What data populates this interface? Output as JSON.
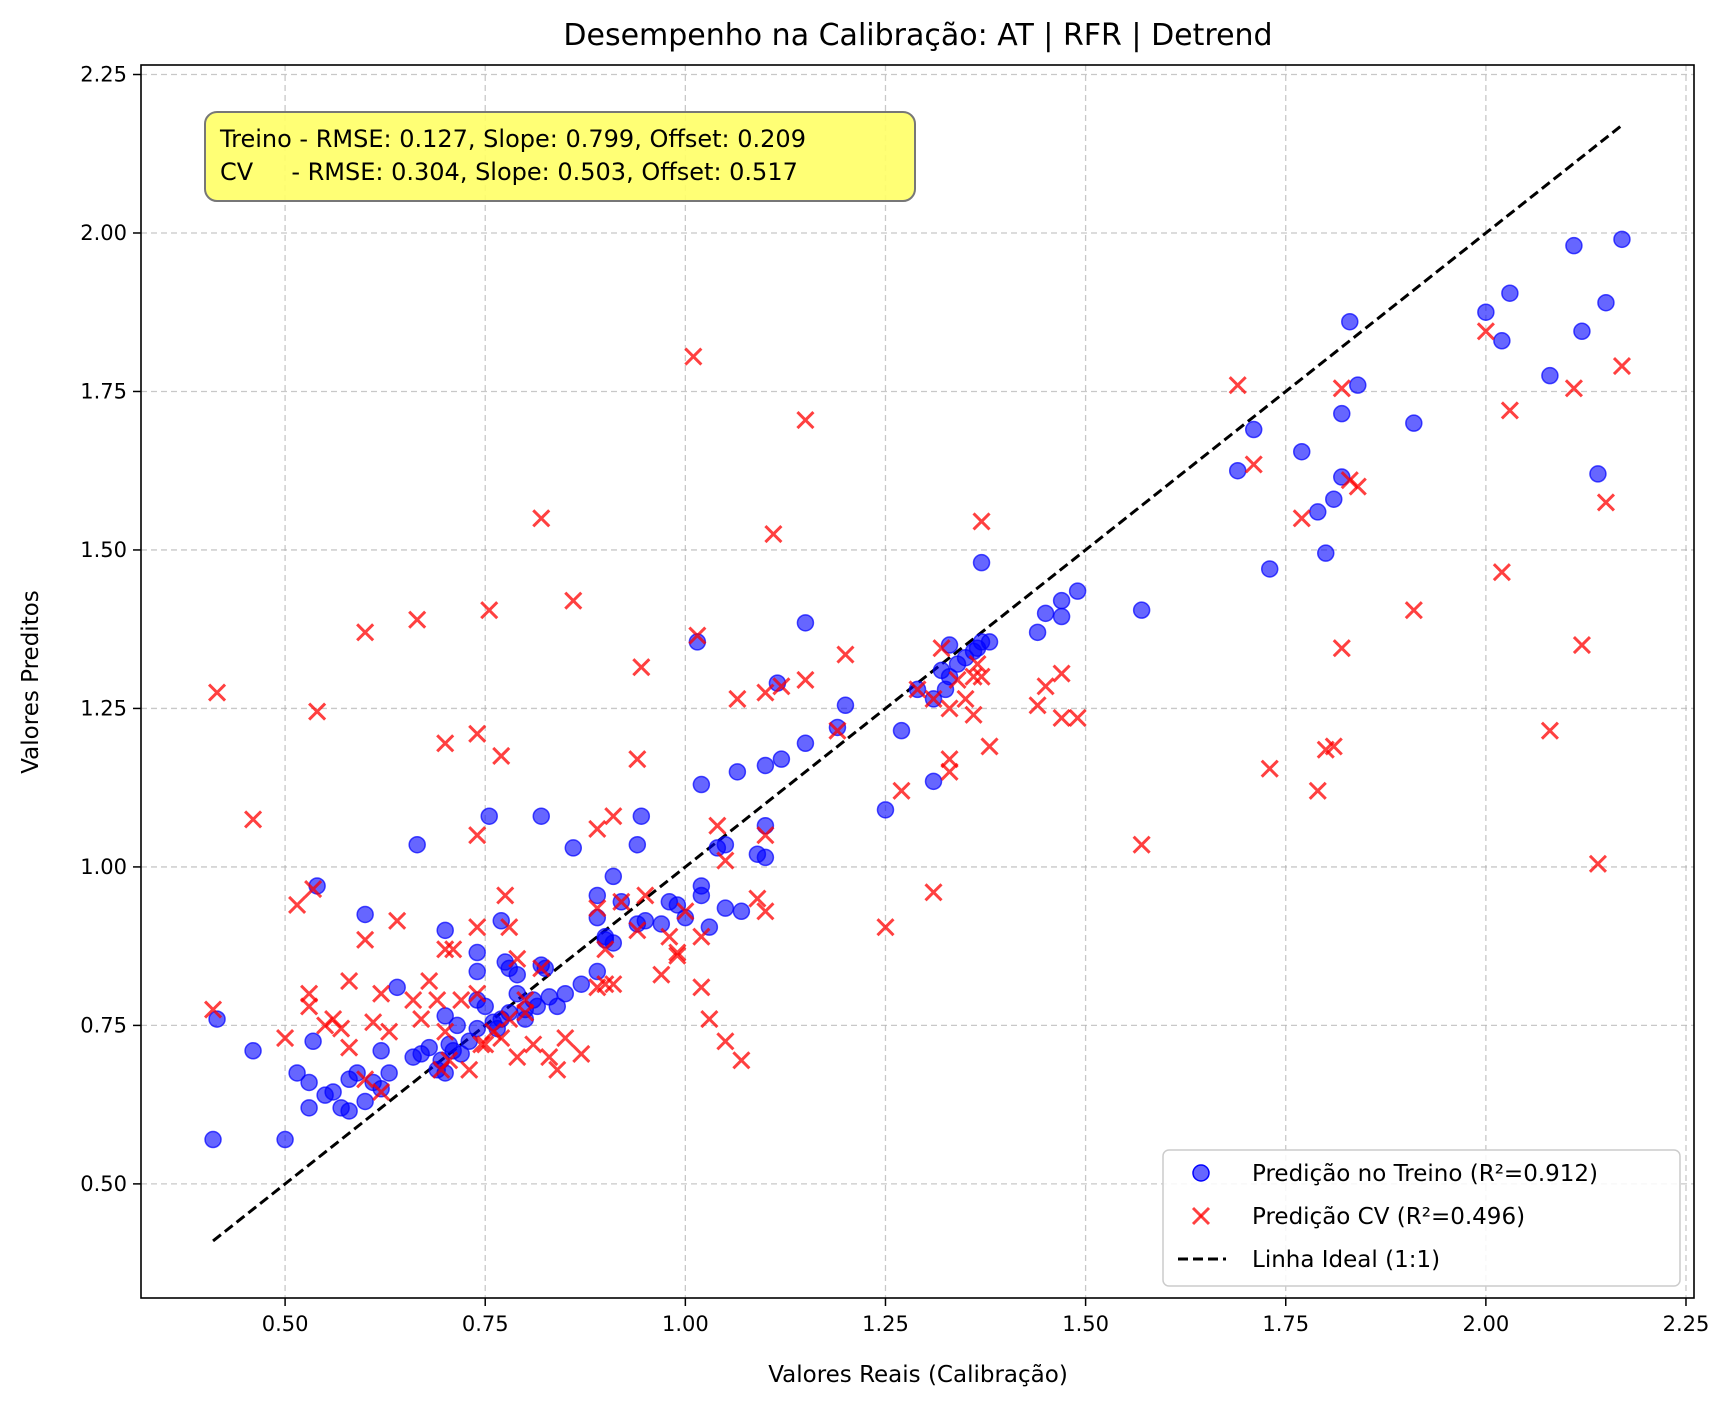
{
  "chart_data": {
    "type": "scatter",
    "title": "Desempenho na Calibração: AT | RFR | Detrend",
    "xlabel": "Valores Reais (Calibração)",
    "ylabel": "Valores Preditos",
    "xlim": [
      0.32,
      2.26
    ],
    "ylim": [
      0.32,
      2.265
    ],
    "xticks": [
      0.5,
      0.75,
      1.0,
      1.25,
      1.5,
      1.75,
      2.0,
      2.25
    ],
    "xtick_labels": [
      "0.50",
      "0.75",
      "1.00",
      "1.25",
      "1.50",
      "1.75",
      "2.00",
      "2.25"
    ],
    "yticks": [
      0.5,
      0.75,
      1.0,
      1.25,
      1.5,
      1.75,
      2.0,
      2.25
    ],
    "ytick_labels": [
      "0.50",
      "0.75",
      "1.00",
      "1.25",
      "1.50",
      "1.75",
      "2.00",
      "2.25"
    ],
    "grid": true,
    "legend_position": "bottom-right",
    "annotation": {
      "line1": "Treino - RMSE: 0.127, Slope: 0.799, Offset: 0.209",
      "line2": "CV     - RMSE: 0.304, Slope: 0.503, Offset: 0.517",
      "background": "#ffff66"
    },
    "ideal_line": {
      "name": "Linha Ideal (1:1)",
      "from": [
        0.41,
        0.41
      ],
      "to": [
        2.17,
        2.17
      ],
      "color": "#000000"
    },
    "series": [
      {
        "name": "Predição no Treino (R²=0.912)",
        "marker": "circle",
        "color": "#0000ff",
        "points": [
          [
            0.41,
            0.57
          ],
          [
            0.415,
            0.76
          ],
          [
            0.46,
            0.71
          ],
          [
            0.5,
            0.57
          ],
          [
            0.515,
            0.675
          ],
          [
            0.53,
            0.66
          ],
          [
            0.53,
            0.62
          ],
          [
            0.535,
            0.725
          ],
          [
            0.54,
            0.97
          ],
          [
            0.55,
            0.64
          ],
          [
            0.56,
            0.645
          ],
          [
            0.57,
            0.62
          ],
          [
            0.58,
            0.615
          ],
          [
            0.58,
            0.665
          ],
          [
            0.59,
            0.675
          ],
          [
            0.6,
            0.63
          ],
          [
            0.6,
            0.925
          ],
          [
            0.61,
            0.66
          ],
          [
            0.62,
            0.71
          ],
          [
            0.62,
            0.65
          ],
          [
            0.63,
            0.675
          ],
          [
            0.64,
            0.81
          ],
          [
            0.66,
            0.7
          ],
          [
            0.665,
            1.035
          ],
          [
            0.67,
            0.705
          ],
          [
            0.68,
            0.715
          ],
          [
            0.69,
            0.68
          ],
          [
            0.695,
            0.695
          ],
          [
            0.7,
            0.9
          ],
          [
            0.7,
            0.765
          ],
          [
            0.7,
            0.675
          ],
          [
            0.705,
            0.72
          ],
          [
            0.71,
            0.71
          ],
          [
            0.715,
            0.75
          ],
          [
            0.72,
            0.705
          ],
          [
            0.73,
            0.725
          ],
          [
            0.74,
            0.79
          ],
          [
            0.74,
            0.745
          ],
          [
            0.74,
            0.865
          ],
          [
            0.74,
            0.835
          ],
          [
            0.75,
            0.78
          ],
          [
            0.755,
            1.08
          ],
          [
            0.76,
            0.755
          ],
          [
            0.765,
            0.745
          ],
          [
            0.77,
            0.76
          ],
          [
            0.77,
            0.915
          ],
          [
            0.775,
            0.85
          ],
          [
            0.78,
            0.77
          ],
          [
            0.78,
            0.84
          ],
          [
            0.79,
            0.8
          ],
          [
            0.79,
            0.83
          ],
          [
            0.8,
            0.775
          ],
          [
            0.8,
            0.76
          ],
          [
            0.81,
            0.79
          ],
          [
            0.815,
            0.78
          ],
          [
            0.82,
            0.845
          ],
          [
            0.82,
            1.08
          ],
          [
            0.825,
            0.84
          ],
          [
            0.83,
            0.795
          ],
          [
            0.84,
            0.78
          ],
          [
            0.85,
            0.8
          ],
          [
            0.86,
            1.03
          ],
          [
            0.87,
            0.815
          ],
          [
            0.89,
            0.955
          ],
          [
            0.89,
            0.92
          ],
          [
            0.89,
            0.835
          ],
          [
            0.9,
            0.89
          ],
          [
            0.9,
            0.885
          ],
          [
            0.91,
            0.985
          ],
          [
            0.91,
            0.88
          ],
          [
            0.92,
            0.945
          ],
          [
            0.94,
            0.91
          ],
          [
            0.94,
            1.035
          ],
          [
            0.945,
            1.08
          ],
          [
            0.95,
            0.915
          ],
          [
            0.97,
            0.91
          ],
          [
            0.98,
            0.945
          ],
          [
            0.99,
            0.94
          ],
          [
            1.0,
            0.92
          ],
          [
            1.02,
            1.13
          ],
          [
            1.02,
            0.97
          ],
          [
            1.02,
            0.955
          ],
          [
            1.03,
            0.905
          ],
          [
            1.04,
            1.03
          ],
          [
            1.05,
            1.035
          ],
          [
            1.05,
            0.935
          ],
          [
            1.065,
            1.15
          ],
          [
            1.07,
            0.93
          ],
          [
            1.09,
            1.02
          ],
          [
            1.1,
            1.16
          ],
          [
            1.1,
            1.065
          ],
          [
            1.1,
            1.015
          ],
          [
            1.12,
            1.17
          ],
          [
            1.115,
            1.29
          ],
          [
            1.015,
            1.355
          ],
          [
            1.15,
            1.195
          ],
          [
            1.15,
            1.385
          ],
          [
            1.19,
            1.22
          ],
          [
            1.2,
            1.255
          ],
          [
            1.25,
            1.09
          ],
          [
            1.27,
            1.215
          ],
          [
            1.29,
            1.28
          ],
          [
            1.31,
            1.135
          ],
          [
            1.31,
            1.265
          ],
          [
            1.32,
            1.31
          ],
          [
            1.325,
            1.28
          ],
          [
            1.33,
            1.35
          ],
          [
            1.33,
            1.3
          ],
          [
            1.34,
            1.32
          ],
          [
            1.35,
            1.33
          ],
          [
            1.36,
            1.34
          ],
          [
            1.365,
            1.345
          ],
          [
            1.37,
            1.48
          ],
          [
            1.37,
            1.355
          ],
          [
            1.38,
            1.355
          ],
          [
            1.44,
            1.37
          ],
          [
            1.45,
            1.4
          ],
          [
            1.47,
            1.42
          ],
          [
            1.47,
            1.395
          ],
          [
            1.49,
            1.435
          ],
          [
            1.57,
            1.405
          ],
          [
            1.69,
            1.625
          ],
          [
            1.71,
            1.69
          ],
          [
            1.73,
            1.47
          ],
          [
            1.77,
            1.655
          ],
          [
            1.79,
            1.56
          ],
          [
            1.8,
            1.495
          ],
          [
            1.81,
            1.58
          ],
          [
            1.82,
            1.715
          ],
          [
            1.82,
            1.615
          ],
          [
            1.83,
            1.86
          ],
          [
            1.84,
            1.76
          ],
          [
            1.91,
            1.7
          ],
          [
            2.0,
            1.875
          ],
          [
            2.02,
            1.83
          ],
          [
            2.03,
            1.905
          ],
          [
            2.08,
            1.775
          ],
          [
            2.11,
            1.98
          ],
          [
            2.12,
            1.845
          ],
          [
            2.14,
            1.62
          ],
          [
            2.15,
            1.89
          ],
          [
            2.17,
            1.99
          ]
        ]
      },
      {
        "name": "Predição CV (R²=0.496)",
        "marker": "x",
        "color": "#ff0000",
        "points": [
          [
            0.41,
            0.775
          ],
          [
            0.415,
            1.275
          ],
          [
            0.46,
            1.075
          ],
          [
            0.5,
            0.73
          ],
          [
            0.515,
            0.94
          ],
          [
            0.53,
            0.8
          ],
          [
            0.53,
            0.78
          ],
          [
            0.535,
            0.965
          ],
          [
            0.54,
            1.245
          ],
          [
            0.55,
            0.75
          ],
          [
            0.56,
            0.76
          ],
          [
            0.57,
            0.745
          ],
          [
            0.58,
            0.82
          ],
          [
            0.58,
            0.715
          ],
          [
            0.6,
            1.37
          ],
          [
            0.6,
            0.885
          ],
          [
            0.6,
            0.665
          ],
          [
            0.61,
            0.755
          ],
          [
            0.62,
            0.8
          ],
          [
            0.62,
            0.645
          ],
          [
            0.63,
            0.74
          ],
          [
            0.64,
            0.915
          ],
          [
            0.66,
            0.79
          ],
          [
            0.665,
            1.39
          ],
          [
            0.67,
            0.76
          ],
          [
            0.68,
            0.82
          ],
          [
            0.69,
            0.79
          ],
          [
            0.695,
            0.68
          ],
          [
            0.7,
            1.195
          ],
          [
            0.7,
            0.87
          ],
          [
            0.7,
            0.74
          ],
          [
            0.705,
            0.695
          ],
          [
            0.71,
            0.87
          ],
          [
            0.72,
            0.79
          ],
          [
            0.73,
            0.68
          ],
          [
            0.74,
            1.21
          ],
          [
            0.74,
            1.05
          ],
          [
            0.74,
            0.905
          ],
          [
            0.74,
            0.8
          ],
          [
            0.745,
            0.72
          ],
          [
            0.75,
            0.72
          ],
          [
            0.755,
            1.405
          ],
          [
            0.76,
            0.74
          ],
          [
            0.77,
            1.175
          ],
          [
            0.77,
            0.73
          ],
          [
            0.775,
            0.955
          ],
          [
            0.78,
            0.905
          ],
          [
            0.78,
            0.76
          ],
          [
            0.79,
            0.855
          ],
          [
            0.79,
            0.7
          ],
          [
            0.8,
            0.79
          ],
          [
            0.8,
            0.77
          ],
          [
            0.81,
            0.72
          ],
          [
            0.82,
            1.55
          ],
          [
            0.82,
            0.84
          ],
          [
            0.83,
            0.7
          ],
          [
            0.84,
            0.68
          ],
          [
            0.85,
            0.73
          ],
          [
            0.86,
            1.42
          ],
          [
            0.87,
            0.705
          ],
          [
            0.89,
            1.06
          ],
          [
            0.89,
            0.935
          ],
          [
            0.89,
            0.81
          ],
          [
            0.9,
            0.87
          ],
          [
            0.9,
            0.815
          ],
          [
            0.91,
            1.08
          ],
          [
            0.91,
            0.815
          ],
          [
            0.92,
            0.945
          ],
          [
            0.94,
            1.17
          ],
          [
            0.94,
            0.9
          ],
          [
            0.945,
            1.315
          ],
          [
            0.95,
            0.955
          ],
          [
            0.97,
            0.83
          ],
          [
            0.98,
            0.89
          ],
          [
            0.99,
            0.865
          ],
          [
            0.99,
            0.86
          ],
          [
            1.0,
            0.93
          ],
          [
            1.01,
            1.805
          ],
          [
            1.015,
            1.365
          ],
          [
            1.02,
            0.81
          ],
          [
            1.02,
            0.89
          ],
          [
            1.03,
            0.76
          ],
          [
            1.04,
            1.065
          ],
          [
            1.05,
            1.01
          ],
          [
            1.05,
            0.725
          ],
          [
            1.065,
            1.265
          ],
          [
            1.07,
            0.695
          ],
          [
            1.09,
            0.95
          ],
          [
            1.1,
            1.275
          ],
          [
            1.1,
            1.05
          ],
          [
            1.1,
            0.93
          ],
          [
            1.11,
            1.525
          ],
          [
            1.12,
            1.285
          ],
          [
            1.15,
            1.705
          ],
          [
            1.15,
            1.295
          ],
          [
            1.19,
            1.215
          ],
          [
            1.2,
            1.335
          ],
          [
            1.25,
            0.905
          ],
          [
            1.27,
            1.12
          ],
          [
            1.29,
            1.28
          ],
          [
            1.31,
            0.96
          ],
          [
            1.31,
            1.265
          ],
          [
            1.32,
            1.345
          ],
          [
            1.33,
            1.17
          ],
          [
            1.33,
            1.15
          ],
          [
            1.33,
            1.25
          ],
          [
            1.34,
            1.295
          ],
          [
            1.35,
            1.265
          ],
          [
            1.36,
            1.3
          ],
          [
            1.36,
            1.24
          ],
          [
            1.365,
            1.32
          ],
          [
            1.37,
            1.545
          ],
          [
            1.37,
            1.3
          ],
          [
            1.38,
            1.19
          ],
          [
            1.44,
            1.255
          ],
          [
            1.45,
            1.285
          ],
          [
            1.47,
            1.305
          ],
          [
            1.47,
            1.235
          ],
          [
            1.49,
            1.235
          ],
          [
            1.57,
            1.035
          ],
          [
            1.69,
            1.76
          ],
          [
            1.71,
            1.635
          ],
          [
            1.73,
            1.155
          ],
          [
            1.77,
            1.55
          ],
          [
            1.79,
            1.12
          ],
          [
            1.8,
            1.185
          ],
          [
            1.81,
            1.19
          ],
          [
            1.82,
            1.345
          ],
          [
            1.82,
            1.755
          ],
          [
            1.83,
            1.61
          ],
          [
            1.84,
            1.6
          ],
          [
            1.91,
            1.405
          ],
          [
            2.0,
            1.845
          ],
          [
            2.02,
            1.465
          ],
          [
            2.03,
            1.72
          ],
          [
            2.08,
            1.215
          ],
          [
            2.11,
            1.755
          ],
          [
            2.12,
            1.35
          ],
          [
            2.14,
            1.005
          ],
          [
            2.15,
            1.575
          ],
          [
            2.17,
            1.79
          ]
        ]
      }
    ]
  }
}
